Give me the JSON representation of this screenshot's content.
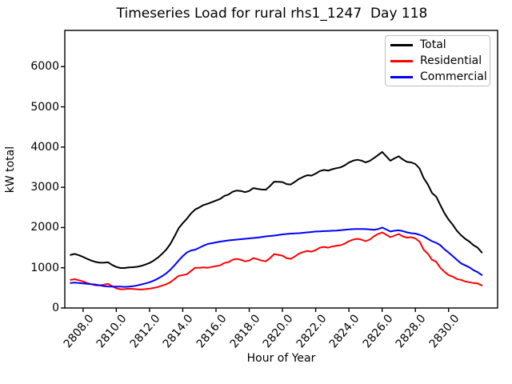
{
  "chart_data": {
    "type": "line",
    "title": "Timeseries Load for rural rhs1_1247  Day 118",
    "xlabel": "Hour of Year",
    "ylabel": "kW total",
    "xlim": [
      2806.9,
      2832.95
    ],
    "ylim": [
      0,
      6900
    ],
    "grid": false,
    "xticks": {
      "values": [
        2808,
        2810,
        2812,
        2814,
        2816,
        2818,
        2820,
        2822,
        2824,
        2826,
        2828,
        2830
      ],
      "labels": [
        "2808.0",
        "2810.0",
        "2812.0",
        "2814.0",
        "2816.0",
        "2818.0",
        "2820.0",
        "2822.0",
        "2824.0",
        "2826.0",
        "2828.0",
        "2830.0"
      ]
    },
    "yticks": {
      "values": [
        0,
        1000,
        2000,
        3000,
        4000,
        5000,
        6000
      ],
      "labels": [
        "0",
        "1000",
        "2000",
        "3000",
        "4000",
        "5000",
        "6000"
      ]
    },
    "legend": {
      "position": "upper right",
      "entries": [
        {
          "label": "Total",
          "color": "#000000"
        },
        {
          "label": "Residential",
          "color": "#ff0000"
        },
        {
          "label": "Commercial",
          "color": "#0000ff"
        }
      ]
    },
    "x_start": 2807.25,
    "x_step": 0.25,
    "x_end": 2832.0,
    "series": [
      {
        "name": "Total",
        "color": "#000000",
        "values": [
          1320,
          1345,
          1310,
          1270,
          1220,
          1180,
          1145,
          1125,
          1125,
          1135,
          1070,
          1020,
          995,
          995,
          1010,
          1015,
          1025,
          1045,
          1080,
          1120,
          1180,
          1250,
          1345,
          1450,
          1590,
          1780,
          1980,
          2110,
          2220,
          2350,
          2450,
          2500,
          2560,
          2590,
          2630,
          2670,
          2710,
          2785,
          2820,
          2890,
          2920,
          2910,
          2880,
          2910,
          2980,
          2960,
          2945,
          2940,
          3030,
          3140,
          3135,
          3130,
          3080,
          3070,
          3135,
          3210,
          3260,
          3300,
          3290,
          3340,
          3405,
          3430,
          3415,
          3450,
          3475,
          3495,
          3545,
          3615,
          3660,
          3685,
          3665,
          3620,
          3655,
          3725,
          3800,
          3880,
          3770,
          3660,
          3720,
          3770,
          3690,
          3630,
          3620,
          3580,
          3470,
          3230,
          3070,
          2860,
          2770,
          2560,
          2360,
          2200,
          2070,
          1920,
          1810,
          1720,
          1650,
          1560,
          1500,
          1380
        ]
      },
      {
        "name": "Residential",
        "color": "#ff0000",
        "values": [
          700,
          715,
          690,
          660,
          620,
          590,
          565,
          560,
          580,
          600,
          540,
          490,
          465,
          470,
          480,
          475,
          465,
          460,
          470,
          480,
          500,
          520,
          555,
          590,
          640,
          720,
          800,
          820,
          840,
          920,
          1000,
          1000,
          1010,
          1000,
          1020,
          1040,
          1060,
          1120,
          1140,
          1200,
          1220,
          1200,
          1160,
          1180,
          1240,
          1210,
          1180,
          1160,
          1240,
          1340,
          1320,
          1300,
          1240,
          1220,
          1280,
          1350,
          1390,
          1420,
          1400,
          1440,
          1500,
          1520,
          1500,
          1530,
          1550,
          1560,
          1600,
          1660,
          1700,
          1720,
          1700,
          1660,
          1700,
          1780,
          1840,
          1880,
          1820,
          1760,
          1800,
          1840,
          1780,
          1750,
          1760,
          1730,
          1650,
          1450,
          1350,
          1200,
          1150,
          1000,
          900,
          820,
          780,
          720,
          700,
          660,
          640,
          620,
          610,
          560
        ]
      },
      {
        "name": "Commercial",
        "color": "#0000ff",
        "values": [
          620,
          630,
          620,
          610,
          600,
          590,
          580,
          565,
          545,
          535,
          530,
          530,
          530,
          525,
          530,
          540,
          560,
          585,
          610,
          640,
          680,
          730,
          790,
          860,
          950,
          1060,
          1180,
          1290,
          1380,
          1430,
          1450,
          1500,
          1550,
          1590,
          1610,
          1630,
          1650,
          1665,
          1680,
          1690,
          1700,
          1710,
          1720,
          1730,
          1740,
          1750,
          1765,
          1780,
          1790,
          1800,
          1815,
          1830,
          1840,
          1850,
          1855,
          1860,
          1870,
          1880,
          1890,
          1900,
          1905,
          1910,
          1915,
          1920,
          1925,
          1935,
          1945,
          1955,
          1960,
          1965,
          1965,
          1960,
          1955,
          1945,
          1960,
          2000,
          1950,
          1900,
          1920,
          1930,
          1910,
          1880,
          1860,
          1850,
          1820,
          1780,
          1720,
          1660,
          1620,
          1560,
          1460,
          1380,
          1290,
          1200,
          1110,
          1060,
          1010,
          940,
          890,
          820
        ]
      }
    ]
  }
}
